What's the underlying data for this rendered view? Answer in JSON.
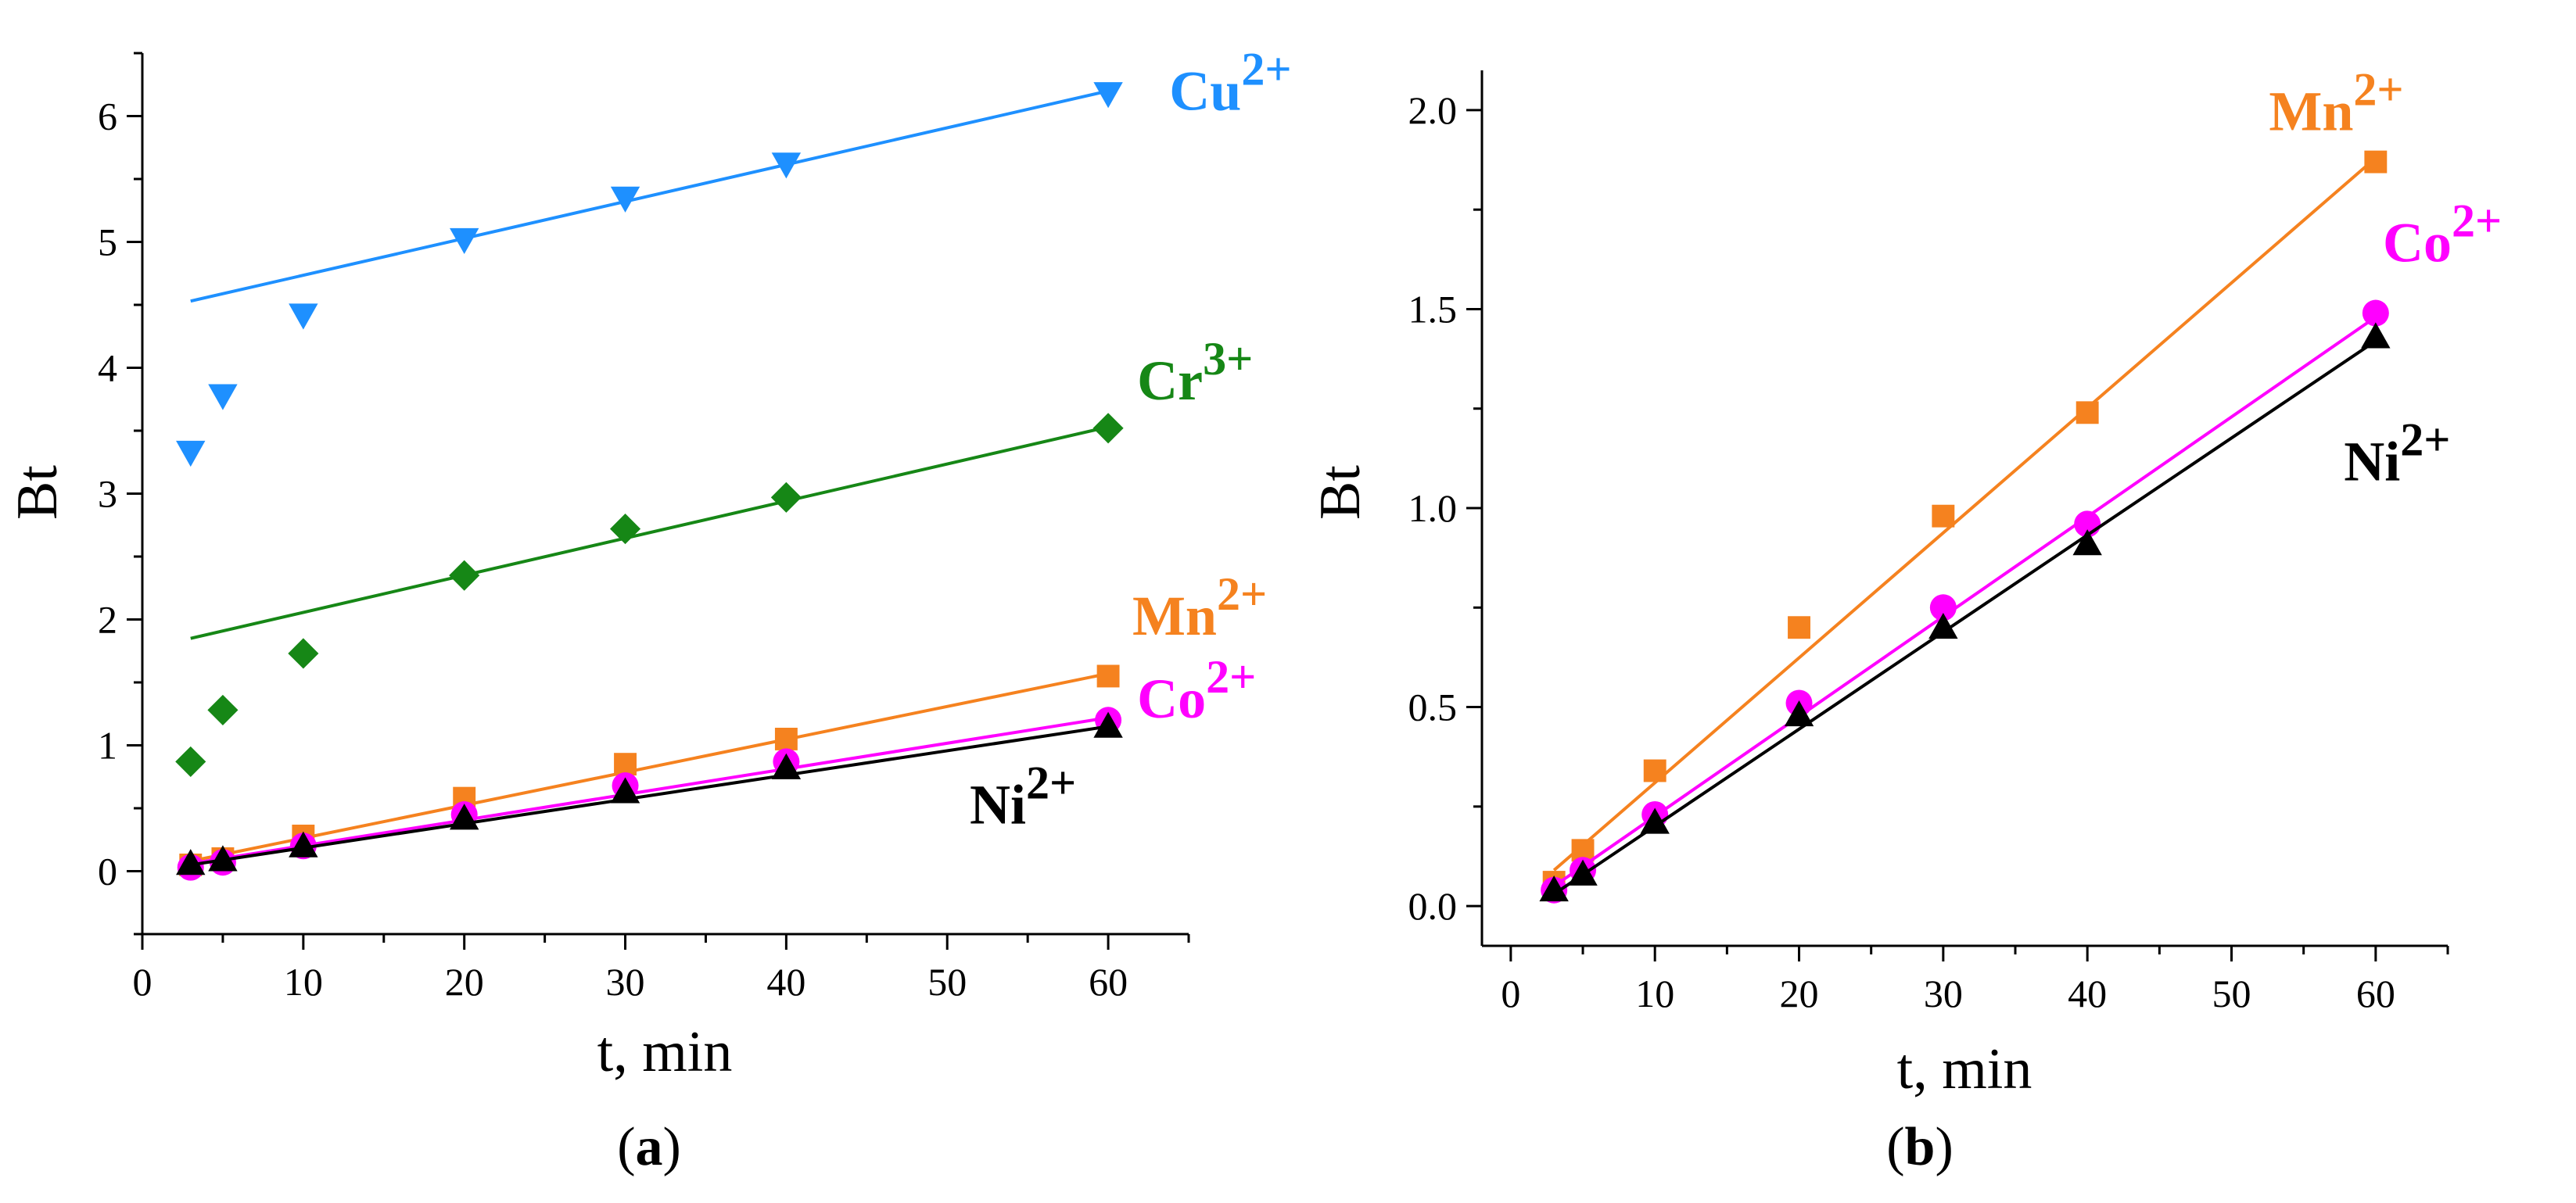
{
  "chart_data": [
    {
      "panel": "a",
      "caption": {
        "open": "(",
        "letter": "a",
        "close": ")"
      },
      "type": "scatter",
      "xlabel": "t, min",
      "ylabel": "Bt",
      "xlim": [
        0,
        65
      ],
      "ylim": [
        -0.5,
        6.5
      ],
      "xticks": [
        0,
        10,
        20,
        30,
        40,
        50,
        60
      ],
      "yticks": [
        0,
        1,
        2,
        3,
        4,
        5,
        6
      ],
      "series": [
        {
          "id": "cu",
          "label": "Cu",
          "charge": "2+",
          "color": "#1e90ff",
          "marker": "triangle-down",
          "x": [
            3,
            5,
            10,
            20,
            30,
            40,
            60
          ],
          "y": [
            3.33,
            3.78,
            4.42,
            5.02,
            5.35,
            5.62,
            6.18
          ],
          "fit": {
            "x": [
              3,
              60
            ],
            "y": [
              4.53,
              6.2
            ]
          },
          "labelPos": {
            "x": 63.8,
            "y": 6.05
          }
        },
        {
          "id": "cr",
          "label": "Cr",
          "charge": "3+",
          "color": "#168716",
          "marker": "diamond",
          "x": [
            3,
            5,
            10,
            20,
            30,
            40,
            60
          ],
          "y": [
            0.87,
            1.28,
            1.73,
            2.35,
            2.72,
            2.97,
            3.52
          ],
          "fit": {
            "x": [
              3,
              60
            ],
            "y": [
              1.85,
              3.53
            ]
          },
          "labelPos": {
            "x": 61.8,
            "y": 3.75
          }
        },
        {
          "id": "mn",
          "label": "Mn",
          "charge": "2+",
          "color": "#f5821f",
          "marker": "square",
          "x": [
            3,
            5,
            10,
            20,
            30,
            40,
            60
          ],
          "y": [
            0.05,
            0.1,
            0.28,
            0.58,
            0.85,
            1.05,
            1.55
          ],
          "fit": {
            "x": [
              3,
              60
            ],
            "y": [
              0.08,
              1.57
            ]
          },
          "labelPos": {
            "x": 61.5,
            "y": 1.88
          }
        },
        {
          "id": "co",
          "label": "Co",
          "charge": "2+",
          "color": "#ff00ff",
          "marker": "circle",
          "x": [
            3,
            5,
            10,
            20,
            30,
            40,
            60
          ],
          "y": [
            0.03,
            0.07,
            0.2,
            0.45,
            0.68,
            0.87,
            1.2
          ],
          "fit": {
            "x": [
              3,
              60
            ],
            "y": [
              0.06,
              1.22
            ]
          },
          "labelPos": {
            "x": 61.8,
            "y": 1.22
          }
        },
        {
          "id": "ni",
          "label": "Ni",
          "charge": "2+",
          "color": "#000000",
          "marker": "triangle-up",
          "x": [
            3,
            5,
            10,
            20,
            30,
            40,
            60
          ],
          "y": [
            0.06,
            0.09,
            0.2,
            0.42,
            0.63,
            0.82,
            1.15
          ],
          "fit": {
            "x": [
              3,
              60
            ],
            "y": [
              0.05,
              1.15
            ]
          },
          "labelPos": {
            "x": 51.4,
            "y": 0.38
          }
        }
      ]
    },
    {
      "panel": "b",
      "caption": {
        "open": "(",
        "letter": "b",
        "close": ")"
      },
      "type": "scatter",
      "xlabel": "t, min",
      "ylabel": "Bt",
      "xlim": [
        -2,
        65
      ],
      "ylim": [
        -0.1,
        2.1
      ],
      "xticks": [
        0,
        10,
        20,
        30,
        40,
        50,
        60
      ],
      "yticks": [
        0.0,
        0.5,
        1.0,
        1.5,
        2.0
      ],
      "yTickDecimals": 1,
      "series": [
        {
          "id": "mn",
          "label": "Mn",
          "charge": "2+",
          "color": "#f5821f",
          "marker": "square",
          "x": [
            3,
            5,
            10,
            20,
            30,
            40,
            60
          ],
          "y": [
            0.06,
            0.14,
            0.34,
            0.7,
            0.98,
            1.24,
            1.87
          ],
          "fit": {
            "x": [
              3,
              60
            ],
            "y": [
              0.09,
              1.88
            ]
          },
          "labelPos": {
            "x": 52.6,
            "y": 1.95
          }
        },
        {
          "id": "co",
          "label": "Co",
          "charge": "2+",
          "color": "#ff00ff",
          "marker": "circle",
          "x": [
            3,
            5,
            10,
            20,
            30,
            40,
            60
          ],
          "y": [
            0.04,
            0.09,
            0.23,
            0.51,
            0.75,
            0.96,
            1.49
          ],
          "fit": {
            "x": [
              3,
              60
            ],
            "y": [
              0.05,
              1.48
            ]
          },
          "labelPos": {
            "x": 60.5,
            "y": 1.62
          }
        },
        {
          "id": "ni",
          "label": "Ni",
          "charge": "2+",
          "color": "#000000",
          "marker": "triangle-up",
          "x": [
            3,
            5,
            10,
            20,
            30,
            40,
            60
          ],
          "y": [
            0.04,
            0.08,
            0.21,
            0.48,
            0.7,
            0.91,
            1.43
          ],
          "fit": {
            "x": [
              3,
              60
            ],
            "y": [
              0.03,
              1.42
            ]
          },
          "labelPos": {
            "x": 57.8,
            "y": 1.07
          }
        }
      ]
    }
  ]
}
